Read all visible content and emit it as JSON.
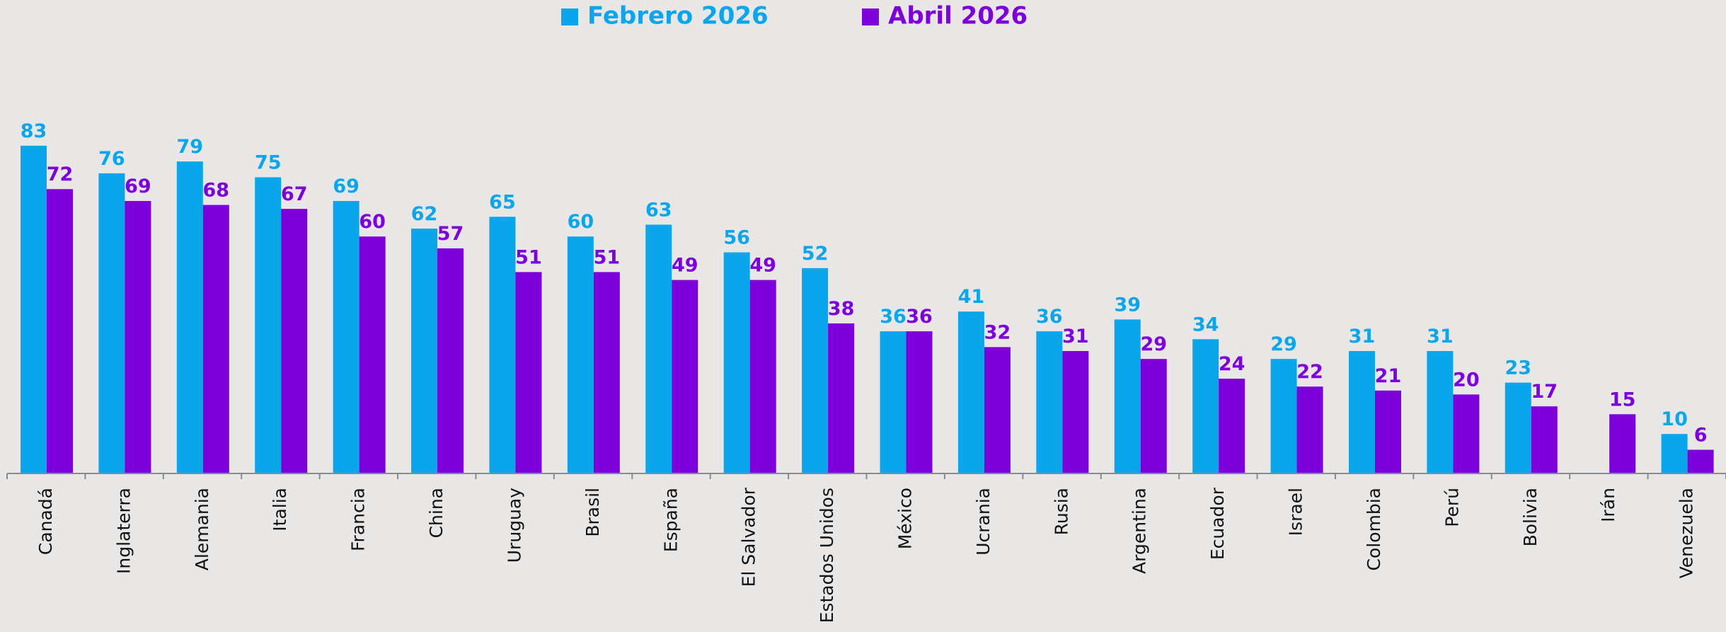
{
  "chart_data": {
    "type": "bar",
    "categories": [
      "Canadá",
      "Inglaterra",
      "Alemania",
      "Italia",
      "Francia",
      "China",
      "Uruguay",
      "Brasil",
      "España",
      "El Salvador",
      "Estados Unidos",
      "México",
      "Ucrania",
      "Rusia",
      "Argentina",
      "Ecuador",
      "Israel",
      "Colombia",
      "Perú",
      "Bolivia",
      "Irán",
      "Venezuela"
    ],
    "series": [
      {
        "name": "Febrero 2026",
        "color": "#0aa6ec",
        "values": [
          83,
          76,
          79,
          75,
          69,
          62,
          65,
          60,
          63,
          56,
          52,
          36,
          41,
          36,
          39,
          34,
          29,
          31,
          31,
          23,
          null,
          10
        ]
      },
      {
        "name": "Abril 2026",
        "color": "#7d00dc",
        "values": [
          72,
          69,
          68,
          67,
          60,
          57,
          51,
          51,
          49,
          49,
          38,
          36,
          32,
          31,
          29,
          24,
          22,
          21,
          20,
          17,
          15,
          6
        ]
      }
    ],
    "legend": "top"
  }
}
